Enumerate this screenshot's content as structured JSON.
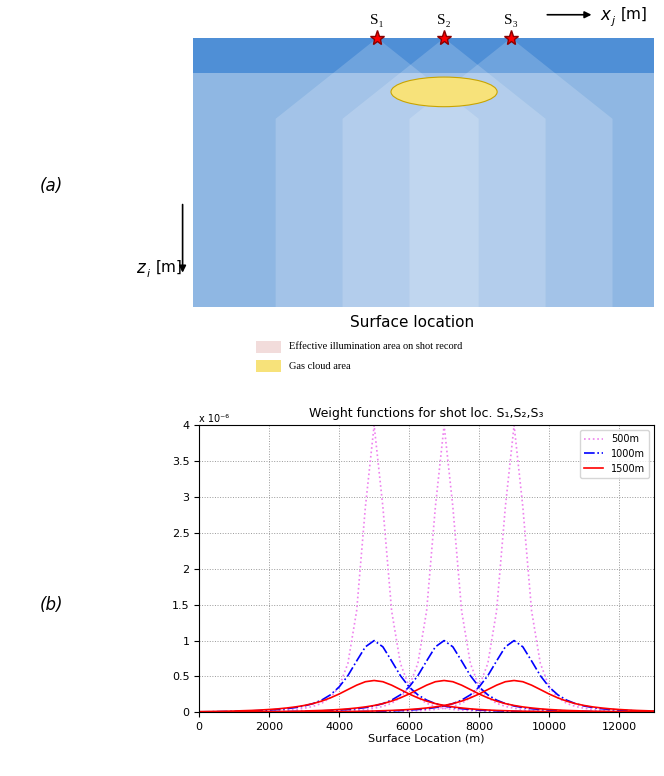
{
  "panel_labels": [
    "(a)",
    "(b)"
  ],
  "diagram": {
    "shots": [
      "S₁",
      "S₂",
      "S₃"
    ],
    "x_axis_label": {
      "symbol": "x",
      "subscript": "j",
      "unit": "[m]"
    },
    "z_axis_label": {
      "symbol": "z",
      "subscript": "i",
      "unit": "[m]"
    },
    "caption": "Surface location",
    "legend": [
      {
        "label": "Effective illumination area on shot record",
        "color": "#f2dcdb"
      },
      {
        "label": "Gas cloud area",
        "color": "#f7e27a"
      }
    ]
  },
  "chart_data": {
    "type": "line",
    "title": "Weight functions for shot loc. S₁,S₂,S₃",
    "xlabel": "Surface Location (m)",
    "annotations": [
      "x 10⁻⁶"
    ],
    "xlim": [
      0,
      13000
    ],
    "xticks": [
      0,
      2000,
      4000,
      6000,
      8000,
      10000,
      12000
    ],
    "ylim": [
      0,
      4
    ],
    "yticks": [
      0,
      0.5,
      1,
      1.5,
      2,
      2.5,
      3,
      3.5,
      4
    ],
    "grid": true,
    "legend": "upper right",
    "x": [
      0,
      250,
      500,
      750,
      1000,
      1250,
      1500,
      1750,
      2000,
      2250,
      2500,
      2750,
      3000,
      3250,
      3500,
      3750,
      4000,
      4250,
      4500,
      4750,
      5000,
      5250,
      5500,
      5750,
      6000,
      6250,
      6500,
      6750,
      7000,
      7250,
      7500,
      7750,
      8000,
      8250,
      8500,
      8750,
      9000,
      9250,
      9500,
      9750,
      10000,
      10250,
      10500,
      10750,
      11000,
      11250,
      11500,
      11750,
      12000,
      12250,
      12500,
      12750,
      13000
    ],
    "series": [
      {
        "name": "500m",
        "color": "violet",
        "line_style": "dotted",
        "values": [
          0.004,
          0.005,
          0.005,
          0.006,
          0.008,
          0.009,
          0.011,
          0.014,
          0.018,
          0.023,
          0.03,
          0.041,
          0.057,
          0.083,
          0.126,
          0.205,
          0.358,
          0.683,
          1.414,
          2.862,
          4.0,
          2.862,
          1.414,
          0.683,
          0.358,
          0.205,
          0.126,
          0.083,
          0.057,
          0.041,
          0.03,
          0.023,
          0.018,
          0.014,
          0.011,
          0.009,
          0.008,
          0.006,
          0.005,
          0.005,
          0.004,
          0.0035,
          0.003,
          0.0026,
          0.0023,
          0.002,
          0.0018,
          0.0016,
          0.0015,
          0.0013,
          0.0012,
          0.0011,
          0.001
        ]
      },
      {
        "color": "violet",
        "line_style": "dotted",
        "values": [
          0.0015,
          0.0016,
          0.0018,
          0.002,
          0.0023,
          0.0026,
          0.003,
          0.0035,
          0.004,
          0.005,
          0.005,
          0.006,
          0.008,
          0.009,
          0.011,
          0.014,
          0.018,
          0.023,
          0.03,
          0.041,
          0.057,
          0.083,
          0.126,
          0.205,
          0.358,
          0.683,
          1.414,
          2.862,
          4.0,
          2.862,
          1.414,
          0.683,
          0.358,
          0.205,
          0.126,
          0.083,
          0.057,
          0.041,
          0.03,
          0.023,
          0.018,
          0.014,
          0.011,
          0.009,
          0.008,
          0.006,
          0.005,
          0.005,
          0.004,
          0.0035,
          0.003,
          0.0026,
          0.0023
        ]
      },
      {
        "color": "violet",
        "line_style": "dotted",
        "values": [
          0.0007,
          0.0007,
          0.0008,
          0.0009,
          0.001,
          0.0011,
          0.0012,
          0.0013,
          0.0015,
          0.0016,
          0.0018,
          0.002,
          0.0023,
          0.0026,
          0.003,
          0.0035,
          0.004,
          0.005,
          0.005,
          0.006,
          0.008,
          0.009,
          0.011,
          0.014,
          0.018,
          0.023,
          0.03,
          0.041,
          0.057,
          0.083,
          0.126,
          0.205,
          0.358,
          0.683,
          1.414,
          2.862,
          4.0,
          2.862,
          1.414,
          0.683,
          0.358,
          0.205,
          0.126,
          0.083,
          0.057,
          0.041,
          0.03,
          0.023,
          0.018,
          0.014,
          0.011,
          0.009,
          0.008
        ]
      },
      {
        "name": "1000m",
        "color": "blue",
        "line_style": "dashdot",
        "values": [
          0.0075,
          0.0087,
          0.01,
          0.012,
          0.014,
          0.017,
          0.021,
          0.025,
          0.032,
          0.04,
          0.051,
          0.067,
          0.089,
          0.122,
          0.171,
          0.244,
          0.354,
          0.512,
          0.716,
          0.913,
          1.0,
          0.913,
          0.716,
          0.512,
          0.354,
          0.244,
          0.171,
          0.122,
          0.089,
          0.067,
          0.051,
          0.04,
          0.032,
          0.025,
          0.021,
          0.017,
          0.014,
          0.012,
          0.01,
          0.0087,
          0.0075,
          0.0066,
          0.0057,
          0.005,
          0.0044,
          0.0039,
          0.0035,
          0.0031,
          0.0028,
          0.0026,
          0.0023,
          0.0021,
          0.0019
        ]
      },
      {
        "color": "blue",
        "line_style": "dashdot",
        "values": [
          0.0028,
          0.0031,
          0.0035,
          0.0039,
          0.0044,
          0.005,
          0.0057,
          0.0066,
          0.0075,
          0.0087,
          0.01,
          0.012,
          0.014,
          0.017,
          0.021,
          0.025,
          0.032,
          0.04,
          0.051,
          0.067,
          0.089,
          0.122,
          0.171,
          0.244,
          0.354,
          0.512,
          0.716,
          0.913,
          1.0,
          0.913,
          0.716,
          0.512,
          0.354,
          0.244,
          0.171,
          0.122,
          0.089,
          0.067,
          0.051,
          0.04,
          0.032,
          0.025,
          0.021,
          0.017,
          0.014,
          0.012,
          0.01,
          0.0087,
          0.0075,
          0.0066,
          0.0057,
          0.005,
          0.0044
        ]
      },
      {
        "color": "blue",
        "line_style": "dashdot",
        "values": [
          0.0013,
          0.0015,
          0.0016,
          0.0017,
          0.0019,
          0.0021,
          0.0023,
          0.0026,
          0.0028,
          0.0031,
          0.0035,
          0.0039,
          0.0044,
          0.005,
          0.0057,
          0.0066,
          0.0075,
          0.0087,
          0.01,
          0.012,
          0.014,
          0.017,
          0.021,
          0.025,
          0.032,
          0.04,
          0.051,
          0.067,
          0.089,
          0.122,
          0.171,
          0.244,
          0.354,
          0.512,
          0.716,
          0.913,
          1.0,
          0.913,
          0.716,
          0.512,
          0.354,
          0.244,
          0.171,
          0.122,
          0.089,
          0.067,
          0.051,
          0.04,
          0.032,
          0.025,
          0.021,
          0.017,
          0.014
        ]
      },
      {
        "name": "1500m",
        "color": "red",
        "line_style": "solid",
        "values": [
          0.0105,
          0.012,
          0.014,
          0.016,
          0.019,
          0.023,
          0.027,
          0.033,
          0.04,
          0.049,
          0.061,
          0.076,
          0.096,
          0.122,
          0.157,
          0.202,
          0.256,
          0.318,
          0.379,
          0.427,
          0.444,
          0.427,
          0.379,
          0.318,
          0.256,
          0.202,
          0.157,
          0.122,
          0.096,
          0.076,
          0.061,
          0.049,
          0.04,
          0.033,
          0.027,
          0.023,
          0.019,
          0.016,
          0.014,
          0.012,
          0.0105,
          0.0092,
          0.0081,
          0.0071,
          0.0063,
          0.0056,
          0.0051,
          0.0045,
          0.0041,
          0.0037,
          0.0034,
          0.003,
          0.0028
        ]
      },
      {
        "color": "red",
        "line_style": "solid",
        "values": [
          0.0041,
          0.0045,
          0.0051,
          0.0056,
          0.0063,
          0.0071,
          0.0081,
          0.0092,
          0.0105,
          0.012,
          0.014,
          0.016,
          0.019,
          0.023,
          0.027,
          0.033,
          0.04,
          0.049,
          0.061,
          0.076,
          0.096,
          0.122,
          0.157,
          0.202,
          0.256,
          0.318,
          0.379,
          0.427,
          0.444,
          0.427,
          0.379,
          0.318,
          0.256,
          0.202,
          0.157,
          0.122,
          0.096,
          0.076,
          0.061,
          0.049,
          0.04,
          0.033,
          0.027,
          0.023,
          0.019,
          0.016,
          0.014,
          0.012,
          0.0105,
          0.0092,
          0.0081,
          0.0071,
          0.0063
        ]
      },
      {
        "color": "red",
        "line_style": "solid",
        "values": [
          0.002,
          0.0021,
          0.0023,
          0.0025,
          0.0028,
          0.003,
          0.0034,
          0.0037,
          0.0041,
          0.0045,
          0.0051,
          0.0056,
          0.0063,
          0.0071,
          0.0081,
          0.0092,
          0.0105,
          0.012,
          0.014,
          0.016,
          0.019,
          0.023,
          0.027,
          0.033,
          0.04,
          0.049,
          0.061,
          0.076,
          0.096,
          0.122,
          0.157,
          0.202,
          0.256,
          0.318,
          0.379,
          0.427,
          0.444,
          0.427,
          0.379,
          0.318,
          0.256,
          0.202,
          0.157,
          0.122,
          0.096,
          0.076,
          0.061,
          0.049,
          0.04,
          0.033,
          0.027,
          0.023,
          0.019
        ]
      }
    ]
  }
}
